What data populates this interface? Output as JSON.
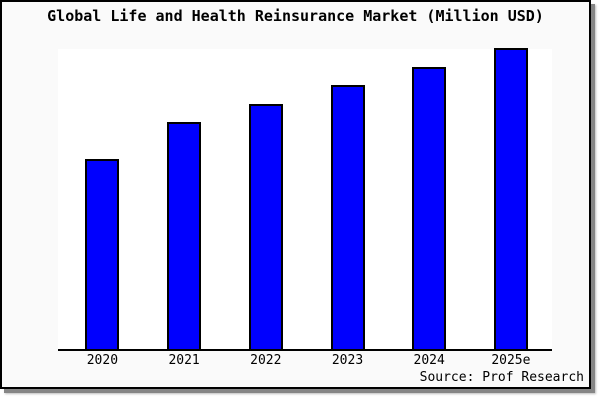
{
  "title": "Global Life and Health Reinsurance Market (Million USD)",
  "source": "Source: Prof Research",
  "colors": {
    "bar_fill": "#0000fe",
    "bar_border": "#000000",
    "frame_background": "#fafafa",
    "plot_background": "#ffffff",
    "axis": "#000000",
    "shadow": "#868686",
    "text": "#000000"
  },
  "chart_data": {
    "type": "bar",
    "title": "Global Life and Health Reinsurance Market (Million USD)",
    "categories": [
      "2020",
      "2021",
      "2022",
      "2023",
      "2024",
      "2025e"
    ],
    "values": [
      190,
      227,
      245,
      264,
      282,
      301
    ],
    "value_note": "No y-axis scale is shown in the image; values are relative bar heights in pixels measured from the baseline",
    "relative_to_2020": [
      1.0,
      1.19,
      1.29,
      1.39,
      1.48,
      1.58
    ],
    "xlabel": "",
    "ylabel": "",
    "legend": "none",
    "grid": false,
    "y_axis_shown": false,
    "x_axis_line": true,
    "annotations": [
      "Source: Prof Research"
    ]
  }
}
